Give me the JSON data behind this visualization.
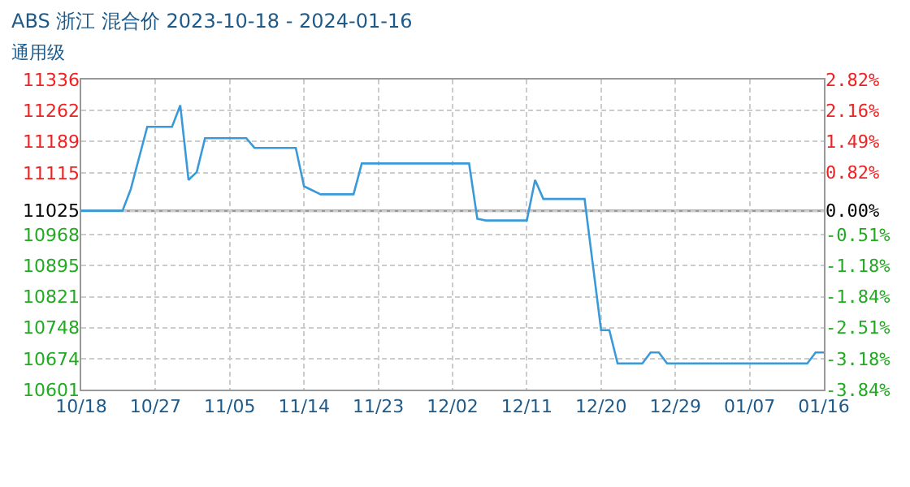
{
  "chart_data": {
    "type": "line",
    "title": "ABS 浙江 混合价 2023-10-18 - 2024-01-16",
    "subtitle": "通用级",
    "x": [
      "2023-10-18",
      "2023-10-23",
      "2023-10-24",
      "2023-10-26",
      "2023-10-29",
      "2023-10-30",
      "2023-10-31",
      "2023-11-01",
      "2023-11-02",
      "2023-11-07",
      "2023-11-08",
      "2023-11-13",
      "2023-11-14",
      "2023-11-16",
      "2023-11-20",
      "2023-11-21",
      "2023-12-04",
      "2023-12-05",
      "2023-12-06",
      "2023-12-11",
      "2023-12-12",
      "2023-12-13",
      "2023-12-18",
      "2023-12-20",
      "2023-12-21",
      "2023-12-22",
      "2023-12-25",
      "2023-12-26",
      "2023-12-27",
      "2023-12-28",
      "2024-01-14",
      "2024-01-15",
      "2024-01-16"
    ],
    "series": [
      {
        "color": "#3a9ad9",
        "values": [
          11025,
          11025,
          11076,
          11224,
          11224,
          11275,
          11098,
          11117,
          11197,
          11197,
          11174,
          11174,
          11083,
          11064,
          11064,
          11137,
          11137,
          11006,
          11002,
          11002,
          11098,
          11053,
          11053,
          10742,
          10742,
          10663,
          10663,
          10689,
          10689,
          10663,
          10663,
          10689,
          10689
        ]
      }
    ],
    "xlim": [
      "2023-10-18",
      "2024-01-16"
    ],
    "xticks": [
      {
        "value": "2023-10-18",
        "label": "10/18"
      },
      {
        "value": "2023-10-27",
        "label": "10/27"
      },
      {
        "value": "2023-11-05",
        "label": "11/05"
      },
      {
        "value": "2023-11-14",
        "label": "11/14"
      },
      {
        "value": "2023-11-23",
        "label": "11/23"
      },
      {
        "value": "2023-12-02",
        "label": "12/02"
      },
      {
        "value": "2023-12-11",
        "label": "12/11"
      },
      {
        "value": "2023-12-20",
        "label": "12/20"
      },
      {
        "value": "2023-12-29",
        "label": "12/29"
      },
      {
        "value": "2024-01-07",
        "label": "01/07"
      },
      {
        "value": "2024-01-16",
        "label": "01/16"
      }
    ],
    "ylim": [
      10601,
      11336
    ],
    "yticks": [
      10601,
      10674,
      10748,
      10821,
      10895,
      10968,
      11025,
      11115,
      11189,
      11262,
      11336
    ],
    "y2lim": [
      -3.84,
      2.82
    ],
    "y2ticks": [
      {
        "value": -3.84,
        "label": "-3.84%"
      },
      {
        "value": -3.18,
        "label": "-3.18%"
      },
      {
        "value": -2.51,
        "label": "-2.51%"
      },
      {
        "value": -1.84,
        "label": "-1.84%"
      },
      {
        "value": -1.18,
        "label": "-1.18%"
      },
      {
        "value": -0.51,
        "label": "-0.51%"
      },
      {
        "value": 0,
        "label": "0.00%"
      },
      {
        "value": 0.82,
        "label": "0.82%"
      },
      {
        "value": 1.49,
        "label": "1.49%"
      },
      {
        "value": 2.16,
        "label": "2.16%"
      },
      {
        "value": 2.82,
        "label": "2.82%"
      }
    ],
    "ref_lines": [
      {
        "axis": "y",
        "value": 11025,
        "color": "#999999"
      }
    ],
    "grid": true,
    "marker": "none",
    "line_style": "solid"
  }
}
